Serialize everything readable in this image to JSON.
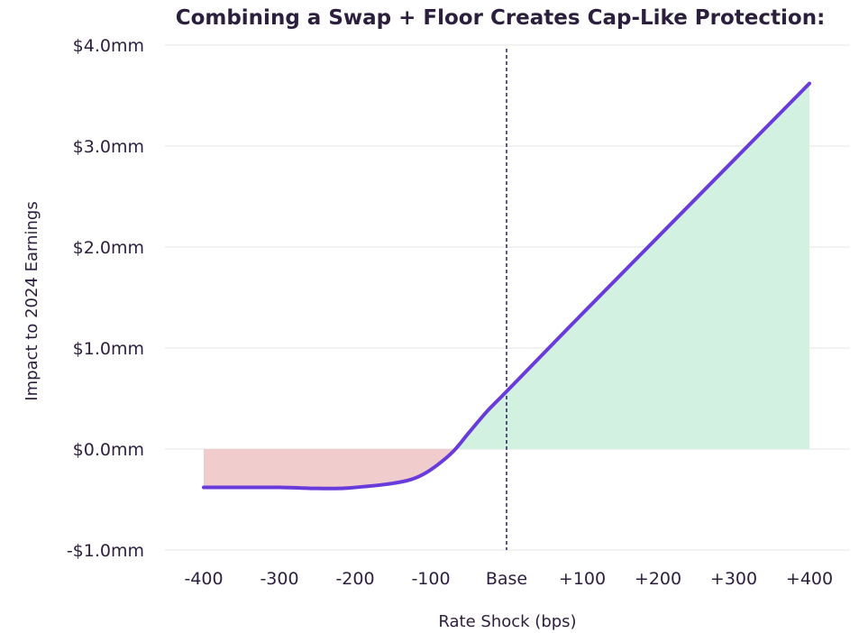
{
  "chart_data": {
    "type": "line",
    "title": "Combining a Swap + Floor Creates Cap-Like Protection:",
    "xlabel": "Rate Shock (bps)",
    "ylabel": "Impact to 2024 Earnings",
    "x_tick_labels": [
      "-400",
      "-300",
      "-200",
      "-100",
      "Base",
      "+100",
      "+200",
      "+300",
      "+400"
    ],
    "x": [
      -400,
      -300,
      -200,
      -100,
      0,
      100,
      200,
      300,
      400
    ],
    "y_tick_labels": [
      "-$1.0mm",
      "$0.0mm",
      "$1.0mm",
      "$2.0mm",
      "$3.0mm",
      "$4.0mm"
    ],
    "ylim": [
      -1.0,
      4.0
    ],
    "xlim": [
      -400,
      400
    ],
    "series": [
      {
        "x": [
          -400,
          -350,
          -300,
          -250,
          -220,
          -200,
          -160,
          -130,
          -110,
          -90,
          -70,
          -50,
          -25,
          0,
          100,
          200,
          300,
          400
        ],
        "y": [
          -0.38,
          -0.38,
          -0.38,
          -0.39,
          -0.39,
          -0.38,
          -0.35,
          -0.31,
          -0.25,
          -0.15,
          -0.02,
          0.16,
          0.38,
          0.57,
          1.34,
          2.1,
          2.86,
          3.62
        ],
        "color": "#6a3bdb"
      }
    ],
    "base_line_x": 0,
    "colors": {
      "line": "#6a3bdb",
      "positive_fill": "#d2f1e0",
      "negative_fill": "#f0cccd",
      "base_line": "#2b1f5c",
      "text": "#2b1f3d",
      "grid": "#e6e6e6"
    },
    "grid": true
  }
}
